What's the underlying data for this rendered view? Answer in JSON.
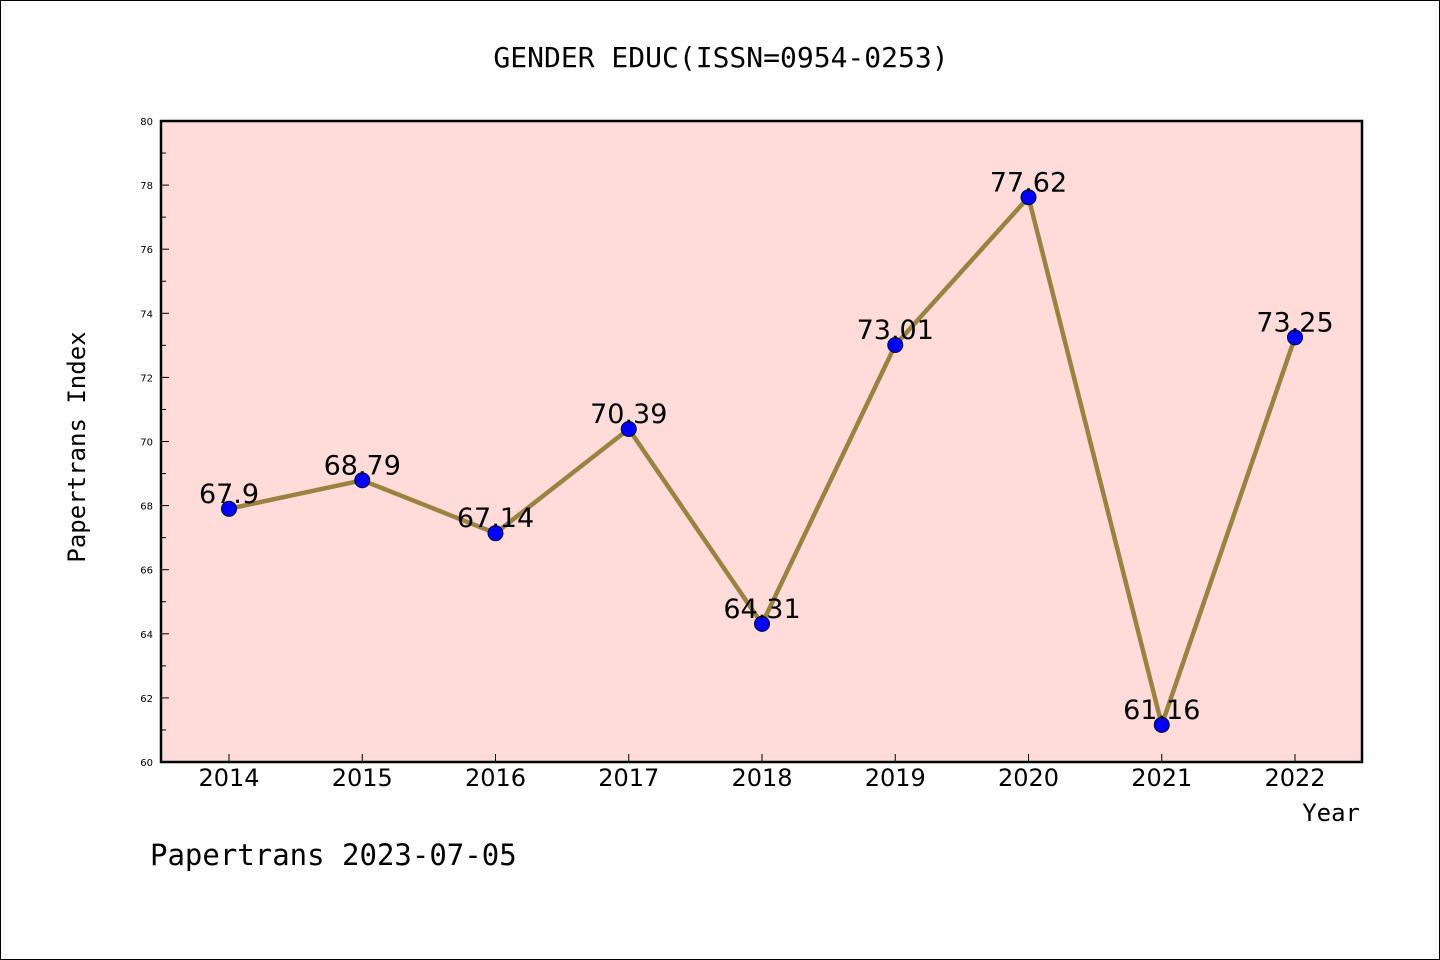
{
  "chart_data": {
    "type": "line",
    "title": "GENDER EDUC(ISSN=0954-0253)",
    "xlabel": "Year",
    "ylabel": "Papertrans Index",
    "x": [
      "2014",
      "2015",
      "2016",
      "2017",
      "2018",
      "2019",
      "2020",
      "2021",
      "2022"
    ],
    "series": [
      {
        "values": [
          67.9,
          68.79,
          67.14,
          70.39,
          64.31,
          73.01,
          77.62,
          61.16,
          73.25
        ],
        "labels": [
          "67.9",
          "68.79",
          "67.14",
          "70.39",
          "64.31",
          "73.01",
          "77.62",
          "61.16",
          "73.25"
        ]
      }
    ],
    "ylim": [
      60,
      80
    ],
    "yticks": [
      "60",
      "62",
      "64",
      "66",
      "68",
      "70",
      "72",
      "74",
      "76",
      "78",
      "80"
    ],
    "grid": false,
    "colors": {
      "plot_background": "#ffdcd9",
      "line": "#9a8340",
      "marker": "#0000ff"
    }
  },
  "footer": {
    "text": "Papertrans 2023-07-05"
  }
}
